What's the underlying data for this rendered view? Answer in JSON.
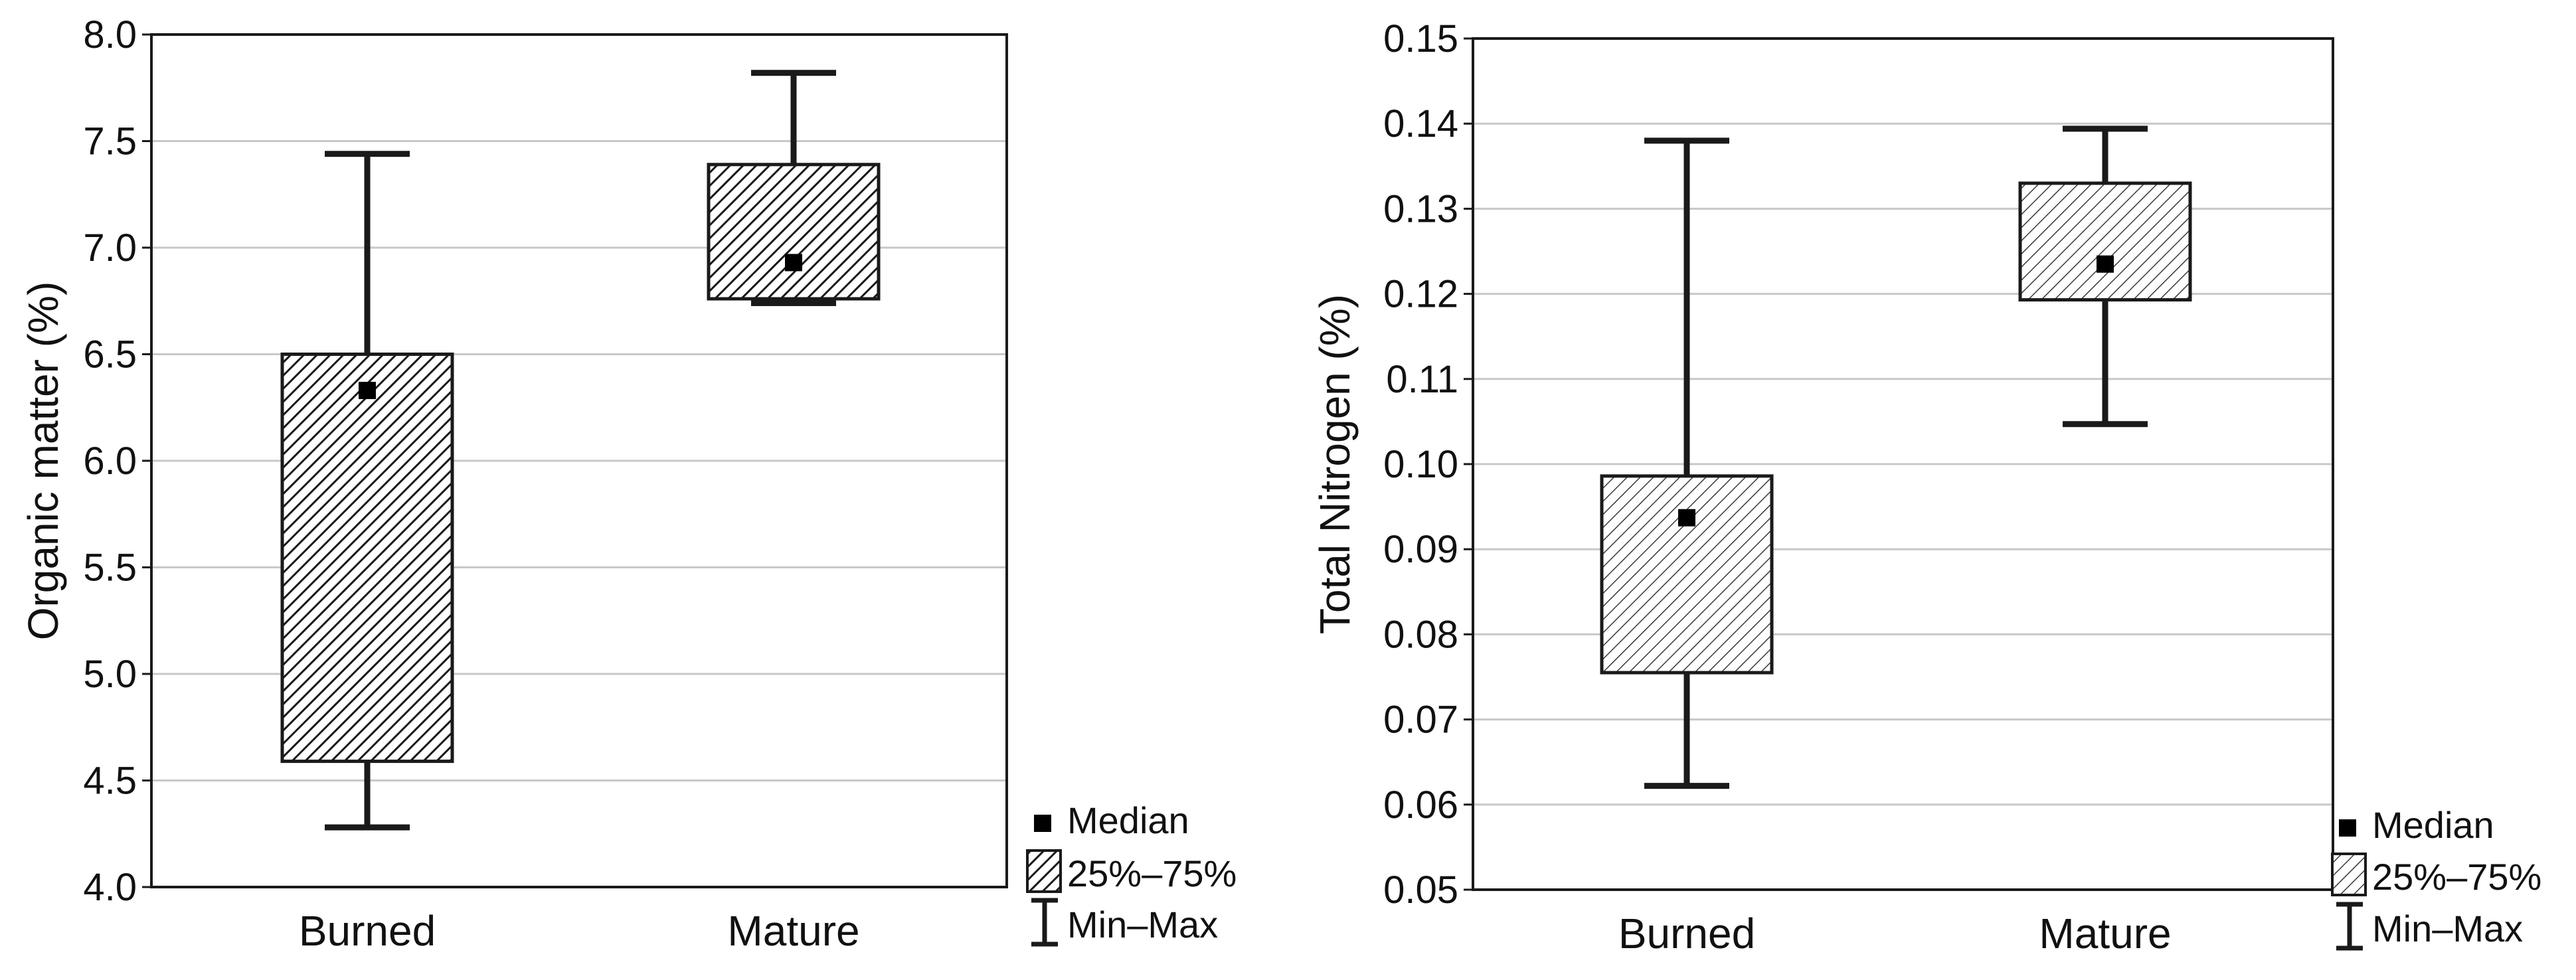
{
  "colors": {
    "axis": "#1a1a1a",
    "grid": "#c8c8c8",
    "box_fill": "#ffffff",
    "hatch_dark": "#1a1a1a",
    "hatch_light": "#3a3a3a",
    "median": "#000000"
  },
  "chart_data": [
    {
      "type": "boxplot",
      "ylabel": "Organic matter (%)",
      "categories": [
        "Burned",
        "Mature"
      ],
      "ylim": [
        4.0,
        8.0
      ],
      "yticks": [
        4.0,
        4.5,
        5.0,
        5.5,
        6.0,
        6.5,
        7.0,
        7.5,
        8.0
      ],
      "ytick_labels": [
        "4.0",
        "4.5",
        "5.0",
        "5.5",
        "6.0",
        "6.5",
        "7.0",
        "7.5",
        "8.0"
      ],
      "grid": true,
      "hatch": "dense",
      "boxes": [
        {
          "category": "Burned",
          "min": 4.28,
          "q1": 4.59,
          "median": 6.33,
          "q3": 6.5,
          "max": 7.44
        },
        {
          "category": "Mature",
          "min": 6.74,
          "q1": 6.76,
          "median": 6.93,
          "q3": 7.39,
          "max": 7.82
        }
      ],
      "legend": {
        "position": "bottom-right",
        "median": "Median",
        "box": "25%–75%",
        "whisker": "Min–Max"
      }
    },
    {
      "type": "boxplot",
      "ylabel": "Total Nitrogen (%)",
      "categories": [
        "Burned",
        "Mature"
      ],
      "ylim": [
        0.05,
        0.15
      ],
      "yticks": [
        0.05,
        0.06,
        0.07,
        0.08,
        0.09,
        0.1,
        0.11,
        0.12,
        0.13,
        0.14,
        0.15
      ],
      "ytick_labels": [
        "0.05",
        "0.06",
        "0.07",
        "0.08",
        "0.09",
        "0.10",
        "0.11",
        "0.12",
        "0.13",
        "0.14",
        "0.15"
      ],
      "grid": true,
      "hatch": "light",
      "boxes": [
        {
          "category": "Burned",
          "min": 0.0622,
          "q1": 0.0755,
          "median": 0.0937,
          "q3": 0.0986,
          "max": 0.138
        },
        {
          "category": "Mature",
          "min": 0.1047,
          "q1": 0.1193,
          "median": 0.1235,
          "q3": 0.133,
          "max": 0.1394
        }
      ],
      "legend": {
        "position": "bottom-right",
        "median": "Median",
        "box": "25%–75%",
        "whisker": "Min–Max"
      }
    }
  ]
}
